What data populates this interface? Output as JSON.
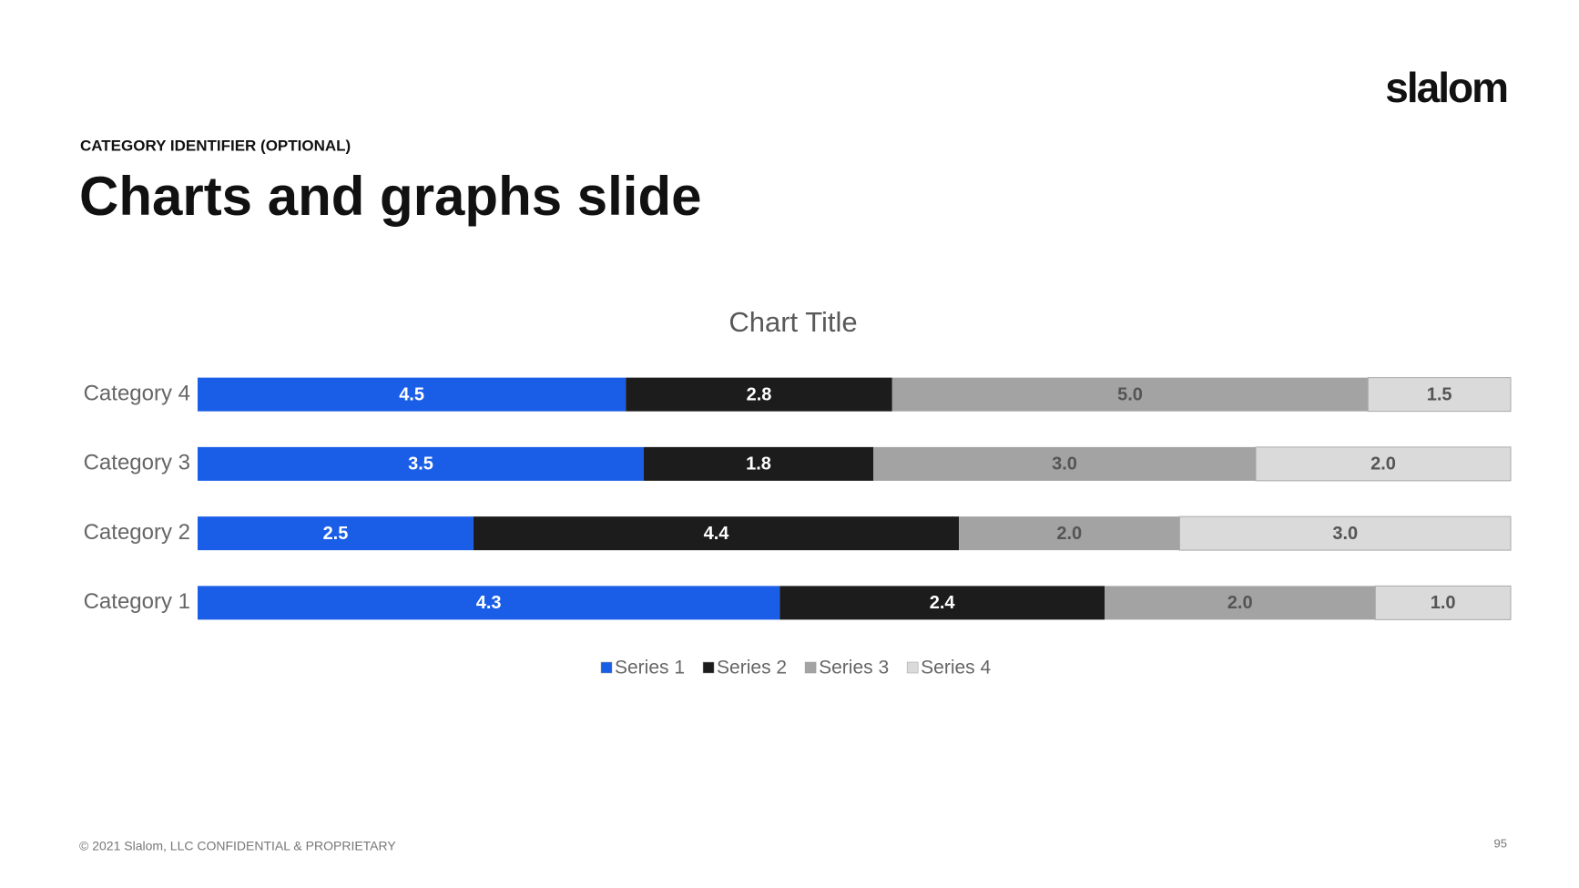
{
  "slide": {
    "category_identifier": "CATEGORY IDENTIFIER (OPTIONAL)",
    "title": "Charts and graphs slide",
    "logo": "slalom",
    "footer": "© 2021 Slalom, LLC CONFIDENTIAL & PROPRIETARY",
    "page_number": "95"
  },
  "chart_data": {
    "type": "bar",
    "orientation": "horizontal",
    "stacking": "percent",
    "title": "Chart Title",
    "categories": [
      "Category 1",
      "Category 2",
      "Category 3",
      "Category 4"
    ],
    "series": [
      {
        "name": "Series 1",
        "color": "#1a5ee8",
        "values": [
          4.3,
          2.5,
          3.5,
          4.5
        ],
        "value_labels": [
          "4.3",
          "2.5",
          "3.5",
          "4.5"
        ]
      },
      {
        "name": "Series 2",
        "color": "#1c1c1c",
        "values": [
          2.4,
          4.4,
          1.8,
          2.8
        ],
        "value_labels": [
          "2.4",
          "4.4",
          "1.8",
          "2.8"
        ]
      },
      {
        "name": "Series 3",
        "color": "#a3a3a3",
        "values": [
          2.0,
          2.0,
          3.0,
          5.0
        ],
        "value_labels": [
          "2.0",
          "2.0",
          "3.0",
          "5.0"
        ]
      },
      {
        "name": "Series 4",
        "color": "#dadada",
        "values": [
          1.0,
          3.0,
          2.0,
          1.5
        ],
        "value_labels": [
          "1.0",
          "3.0",
          "2.0",
          "1.5"
        ]
      }
    ],
    "legend": "bottom"
  }
}
